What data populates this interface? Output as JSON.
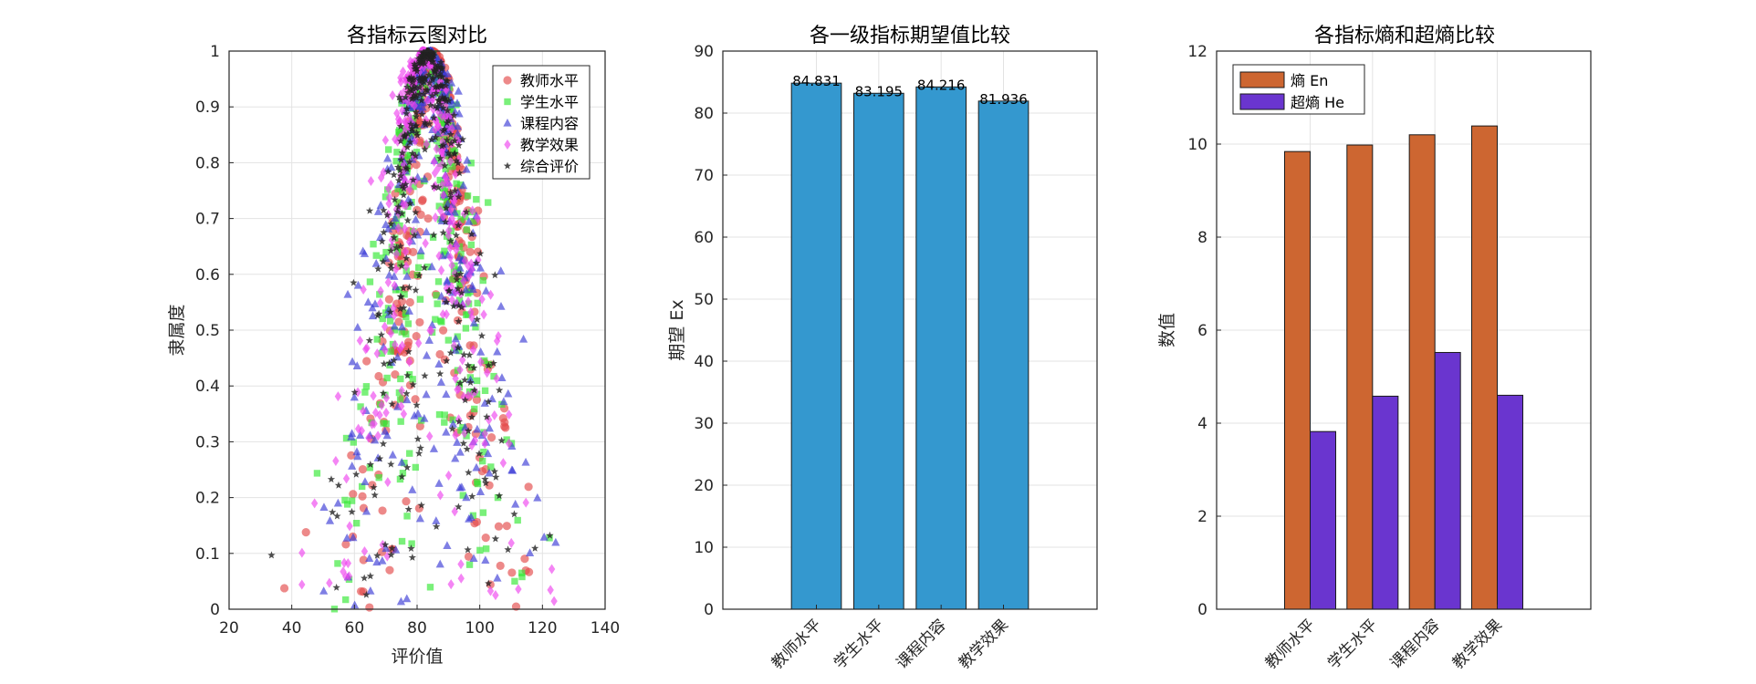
{
  "chart_data": [
    {
      "type": "scatter",
      "title": "各指标云图对比",
      "xlabel": "评价值",
      "ylabel": "隶属度",
      "xlim": [
        20,
        140
      ],
      "ylim": [
        0,
        1
      ],
      "xticks": [
        20,
        40,
        60,
        80,
        100,
        120,
        140
      ],
      "yticks": [
        0,
        0.1,
        0.2,
        0.3,
        0.4,
        0.5,
        0.6,
        0.7,
        0.8,
        0.9,
        1
      ],
      "grid": true,
      "legend_position": "top-right",
      "series": [
        {
          "name": "教师水平",
          "Ex": 84.831,
          "En": 9.84,
          "He": 3.82,
          "marker": "circle",
          "color": "#e34a4a"
        },
        {
          "name": "学生水平",
          "Ex": 83.195,
          "En": 9.98,
          "He": 4.58,
          "marker": "square",
          "color": "#33e833"
        },
        {
          "name": "课程内容",
          "Ex": 84.216,
          "En": 10.2,
          "He": 5.52,
          "marker": "triangle",
          "color": "#3b3bd6"
        },
        {
          "name": "教学效果",
          "Ex": 81.936,
          "En": 10.39,
          "He": 4.6,
          "marker": "diamond",
          "color": "#ee44ee"
        },
        {
          "name": "综合评价",
          "Ex": 83.5,
          "En": 10.1,
          "He": 4.6,
          "marker": "star",
          "color": "#222222"
        }
      ]
    },
    {
      "type": "bar",
      "title": "各一级指标期望值比较",
      "xlabel": "",
      "ylabel": "期望 Ex",
      "categories": [
        "教师水平",
        "学生水平",
        "课程内容",
        "教学效果"
      ],
      "values": [
        84.831,
        83.195,
        84.216,
        81.936
      ],
      "data_labels": [
        "84.831",
        "83.195",
        "84.216",
        "81.936"
      ],
      "ylim": [
        0,
        90
      ],
      "yticks": [
        0,
        10,
        20,
        30,
        40,
        50,
        60,
        70,
        80,
        90
      ],
      "grid": true,
      "color": "#3498cf"
    },
    {
      "type": "bar",
      "title": "各指标熵和超熵比较",
      "xlabel": "",
      "ylabel": "数值",
      "categories": [
        "教师水平",
        "学生水平",
        "课程内容",
        "教学效果"
      ],
      "series": [
        {
          "name": "熵 En",
          "values": [
            9.84,
            9.98,
            10.2,
            10.39
          ],
          "color": "#cd6631"
        },
        {
          "name": "超熵 He",
          "values": [
            3.82,
            4.58,
            5.52,
            4.6
          ],
          "color": "#6a35cf"
        }
      ],
      "ylim": [
        0,
        12
      ],
      "yticks": [
        0,
        2,
        4,
        6,
        8,
        10,
        12
      ],
      "grid": true,
      "legend_position": "top-left"
    }
  ]
}
